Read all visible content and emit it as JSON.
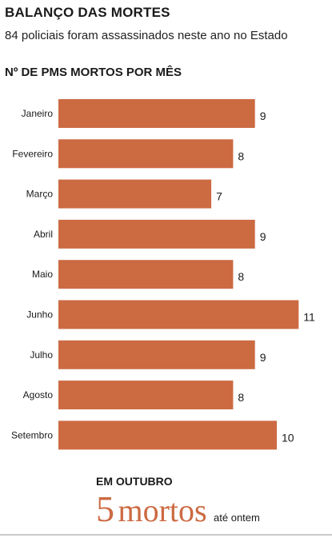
{
  "header": {
    "title": "BALANÇO DAS MORTES",
    "subtitle": "84 policiais foram assassinados neste ano no Estado"
  },
  "chart_label": "Nº DE PMS MORTOS POR MÊS",
  "chart_data": {
    "type": "bar",
    "orientation": "horizontal",
    "categories": [
      "Janeiro",
      "Fevereiro",
      "Março",
      "Abril",
      "Maio",
      "Junho",
      "Julho",
      "Agosto",
      "Setembro"
    ],
    "values": [
      9,
      8,
      7,
      9,
      8,
      11,
      9,
      8,
      10
    ],
    "title": "Nº DE PMS MORTOS POR MÊS",
    "xlim": [
      0,
      11
    ],
    "grid": false,
    "bar_color": "#cc6a42"
  },
  "note": {
    "title": "EM OUTUBRO",
    "number": "5",
    "unit": "mortos",
    "suffix": "até ontem"
  },
  "colors": {
    "accent": "#cc6a42",
    "text": "#1a1a1a"
  }
}
